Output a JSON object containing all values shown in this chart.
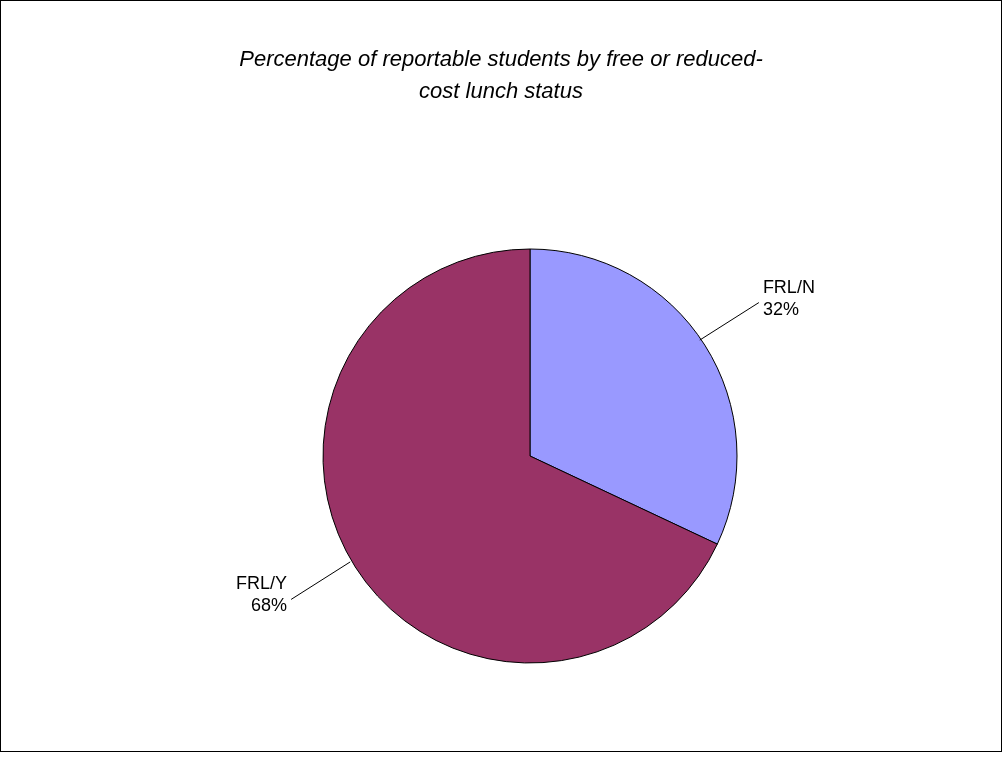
{
  "chart_data": {
    "type": "pie",
    "title": "Percentage of reportable students by free or reduced-cost lunch status",
    "categories": [
      "FRL/N",
      "FRL/Y"
    ],
    "values": [
      32,
      68
    ],
    "value_labels": [
      "32%",
      "68%"
    ],
    "colors": [
      "#9999ff",
      "#993366"
    ]
  }
}
